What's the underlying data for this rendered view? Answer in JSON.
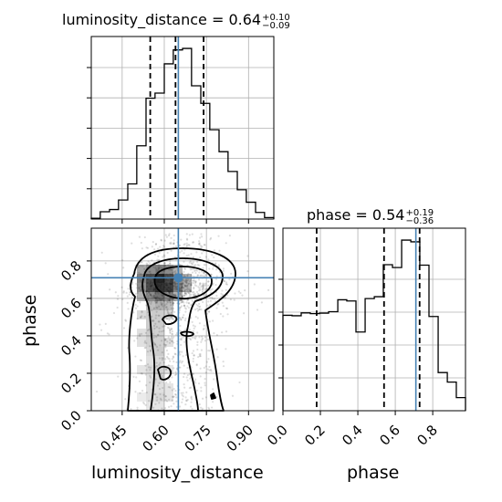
{
  "chart_data": [
    {
      "type": "histogram",
      "panel": "top-left",
      "title": {
        "param": "luminosity_distance",
        "value": "0.64",
        "upper": "+0.10",
        "lower": "−0.09"
      },
      "xlim": [
        0.34,
        0.99
      ],
      "bins": [
        0.34,
        0.372,
        0.405,
        0.437,
        0.47,
        0.502,
        0.535,
        0.567,
        0.6,
        0.632,
        0.665,
        0.697,
        0.73,
        0.762,
        0.795,
        0.827,
        0.86,
        0.892,
        0.925,
        0.957,
        0.99
      ],
      "counts": [
        1,
        10,
        13,
        26,
        48,
        100,
        165,
        172,
        212,
        231,
        233,
        182,
        158,
        122,
        92,
        65,
        40,
        23,
        9,
        2
      ],
      "quantiles": [
        0.55,
        0.64,
        0.74
      ],
      "truth": 0.65,
      "grid": true
    },
    {
      "type": "histogram",
      "panel": "bottom-right",
      "title": {
        "param": "phase",
        "value": "0.54",
        "upper": "+0.19",
        "lower": "−0.36"
      },
      "xlim": [
        0.0,
        0.975
      ],
      "xticks": [
        "0.0",
        "0.2",
        "0.4",
        "0.6",
        "0.8"
      ],
      "xlabel": "phase",
      "bins": [
        0.0,
        0.0488,
        0.0975,
        0.146,
        0.195,
        0.244,
        0.293,
        0.341,
        0.39,
        0.439,
        0.488,
        0.536,
        0.585,
        0.634,
        0.683,
        0.731,
        0.78,
        0.829,
        0.878,
        0.926,
        0.975
      ],
      "counts": [
        400,
        398,
        410,
        407,
        409,
        415,
        465,
        460,
        330,
        470,
        478,
        612,
        600,
        715,
        708,
        610,
        395,
        160,
        120,
        55
      ],
      "quantiles": [
        0.18,
        0.54,
        0.73
      ],
      "truth": 0.71,
      "grid": true
    },
    {
      "type": "2d-histogram-contour",
      "panel": "bottom-left",
      "xlim": [
        0.34,
        0.99
      ],
      "ylim": [
        0.0,
        0.975
      ],
      "xticks": [
        "0.45",
        "0.60",
        "0.75",
        "0.90"
      ],
      "yticks": [
        "0.0",
        "0.2",
        "0.4",
        "0.6",
        "0.8"
      ],
      "xlabel": "luminosity_distance",
      "ylabel": "phase",
      "truth": [
        0.65,
        0.71
      ],
      "contour_levels": [
        "outer",
        "middle",
        "inner"
      ],
      "grid": true
    }
  ]
}
